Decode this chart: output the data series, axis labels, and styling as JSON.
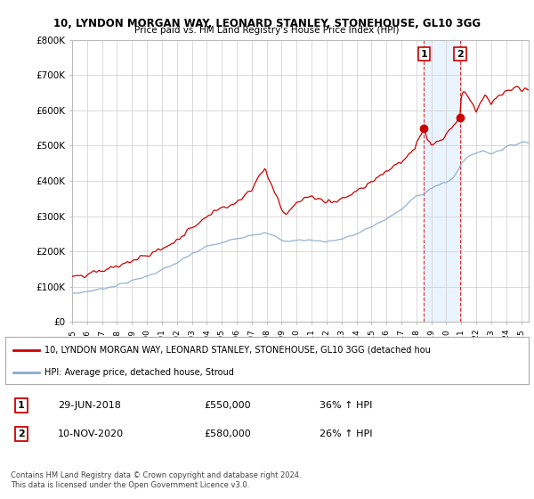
{
  "title_line1": "10, LYNDON MORGAN WAY, LEONARD STANLEY, STONEHOUSE, GL10 3GG",
  "title_line2": "Price paid vs. HM Land Registry's House Price Index (HPI)",
  "background_color": "#ffffff",
  "plot_bg_color": "#ffffff",
  "grid_color": "#cccccc",
  "red_color": "#cc0000",
  "blue_color": "#88aacc",
  "shade_color": "#ddeeff",
  "vline1_year": 2018.5,
  "vline2_year": 2020.917,
  "sale1_value": 550000,
  "sale2_value": 580000,
  "legend_red": "10, LYNDON MORGAN WAY, LEONARD STANLEY, STONEHOUSE, GL10 3GG (detached hou",
  "legend_blue": "HPI: Average price, detached house, Stroud",
  "copyright": "Contains HM Land Registry data © Crown copyright and database right 2024.\nThis data is licensed under the Open Government Licence v3.0.",
  "ylim": [
    0,
    800000
  ],
  "yticks": [
    0,
    100000,
    200000,
    300000,
    400000,
    500000,
    600000,
    700000,
    800000
  ],
  "ytick_labels": [
    "£0",
    "£100K",
    "£200K",
    "£300K",
    "£400K",
    "£500K",
    "£600K",
    "£700K",
    "£800K"
  ],
  "row1_label": "1",
  "row1_date": "29-JUN-2018",
  "row1_price": "£550,000",
  "row1_pct": "36% ↑ HPI",
  "row2_label": "2",
  "row2_date": "10-NOV-2020",
  "row2_price": "£580,000",
  "row2_pct": "26% ↑ HPI"
}
